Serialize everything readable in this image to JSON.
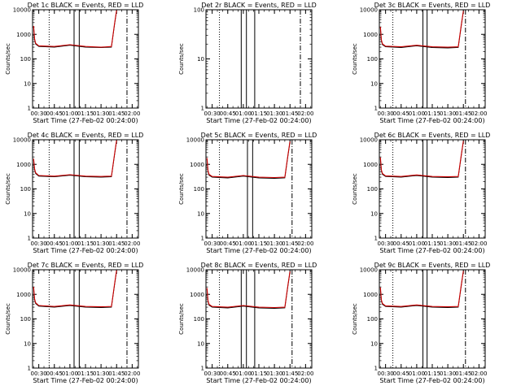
{
  "figure": {
    "colors": {
      "events": "#000000",
      "lld": "#cc0000"
    }
  },
  "chart_data": [
    {
      "type": "line",
      "title": "Det 1c BLACK = Events, RED = LLD",
      "xlabel": "Start Time (27-Feb-02 00:24:00)",
      "ylabel": "Counts/sec",
      "ylog": true,
      "ylim": [
        1,
        10000
      ],
      "xlim": [
        "00:24",
        "02:06"
      ],
      "xticks": [
        "00:30",
        "00:45",
        "01:00",
        "01:15",
        "01:30",
        "01:45",
        "02:00"
      ],
      "yticks": [
        "1",
        "10",
        "100",
        "1000",
        "10000"
      ],
      "vlines": [
        {
          "t": "00:40",
          "style": "dotted"
        },
        {
          "t": "01:04",
          "style": "solid"
        },
        {
          "t": "01:09",
          "style": "solid"
        },
        {
          "t": "01:55",
          "style": "dashdot"
        }
      ],
      "series": [
        {
          "color": "black",
          "t": [
            "00:25",
            "00:26",
            "00:27",
            "00:30",
            "00:45",
            "01:00",
            "01:15",
            "01:30",
            "01:40",
            "01:43",
            "01:45"
          ],
          "values": [
            2000,
            600,
            400,
            320,
            300,
            360,
            300,
            290,
            300,
            2500,
            9000
          ]
        },
        {
          "color": "red",
          "t": [
            "00:25",
            "00:26",
            "00:27",
            "00:30",
            "00:45",
            "01:00",
            "01:15",
            "01:30",
            "01:40",
            "01:43",
            "01:45"
          ],
          "values": [
            2200,
            650,
            430,
            340,
            320,
            380,
            320,
            300,
            320,
            2700,
            9500
          ]
        }
      ]
    },
    {
      "type": "line",
      "title": "Det 2r BLACK = Events, RED = LLD",
      "xlabel": "Start Time (27-Feb-02 00:24:00)",
      "ylabel": "Counts/sec",
      "ylog": true,
      "ylim": [
        1,
        100
      ],
      "xlim": [
        "00:24",
        "02:06"
      ],
      "xticks": [
        "00:30",
        "00:45",
        "01:00",
        "01:15",
        "01:30",
        "01:45",
        "02:00"
      ],
      "yticks": [
        "1",
        "10",
        "100"
      ],
      "vlines": [
        {
          "t": "00:37",
          "style": "dotted"
        },
        {
          "t": "00:58",
          "style": "solid"
        },
        {
          "t": "01:03",
          "style": "solid"
        },
        {
          "t": "01:11",
          "style": "solid"
        },
        {
          "t": "01:55",
          "style": "dashdot"
        }
      ],
      "series": []
    },
    {
      "type": "line",
      "title": "Det 3c BLACK = Events, RED = LLD",
      "xlabel": "Start Time (27-Feb-02 00:24:00)",
      "ylabel": "Counts/sec",
      "ylog": true,
      "ylim": [
        1,
        10000
      ],
      "xlim": [
        "00:24",
        "02:06"
      ],
      "xticks": [
        "00:30",
        "00:45",
        "01:00",
        "01:15",
        "01:30",
        "01:45",
        "02:00"
      ],
      "yticks": [
        "1",
        "10",
        "100",
        "1000",
        "10000"
      ],
      "vlines": [
        {
          "t": "00:37",
          "style": "dotted"
        },
        {
          "t": "01:06",
          "style": "solid"
        },
        {
          "t": "01:10",
          "style": "solid"
        },
        {
          "t": "01:47",
          "style": "dashdot"
        }
      ],
      "series": [
        {
          "color": "black",
          "t": [
            "00:25",
            "00:26",
            "00:27",
            "00:30",
            "00:45",
            "01:00",
            "01:15",
            "01:30",
            "01:40",
            "01:43",
            "01:45"
          ],
          "values": [
            1800,
            550,
            380,
            310,
            290,
            340,
            290,
            280,
            290,
            2300,
            8500
          ]
        },
        {
          "color": "red",
          "t": [
            "00:25",
            "00:26",
            "00:27",
            "00:30",
            "00:45",
            "01:00",
            "01:15",
            "01:30",
            "01:40",
            "01:43",
            "01:45"
          ],
          "values": [
            2000,
            600,
            410,
            330,
            310,
            360,
            310,
            300,
            310,
            2500,
            9000
          ]
        }
      ]
    },
    {
      "type": "line",
      "title": "Det 4c BLACK = Events, RED = LLD",
      "xlabel": "Start Time (27-Feb-02 00:24:00)",
      "ylabel": "Counts/sec",
      "ylog": true,
      "ylim": [
        1,
        10000
      ],
      "xlim": [
        "00:24",
        "02:06"
      ],
      "xticks": [
        "00:30",
        "00:45",
        "01:00",
        "01:15",
        "01:30",
        "01:45",
        "02:00"
      ],
      "yticks": [
        "1",
        "10",
        "100",
        "1000",
        "10000"
      ],
      "vlines": [
        {
          "t": "00:40",
          "style": "dotted"
        },
        {
          "t": "01:04",
          "style": "solid"
        },
        {
          "t": "01:09",
          "style": "solid"
        },
        {
          "t": "01:55",
          "style": "dashdot"
        }
      ],
      "series": [
        {
          "color": "black",
          "t": [
            "00:25",
            "00:26",
            "00:27",
            "00:30",
            "00:45",
            "01:00",
            "01:15",
            "01:30",
            "01:40",
            "01:43",
            "01:45"
          ],
          "values": [
            1500,
            600,
            420,
            330,
            310,
            360,
            310,
            300,
            310,
            2400,
            9000
          ]
        },
        {
          "color": "red",
          "t": [
            "00:25",
            "00:26",
            "00:27",
            "00:30",
            "00:45",
            "01:00",
            "01:15",
            "01:30",
            "01:40",
            "01:43",
            "01:45"
          ],
          "values": [
            1700,
            650,
            450,
            350,
            330,
            380,
            330,
            320,
            330,
            2600,
            9500
          ]
        }
      ]
    },
    {
      "type": "line",
      "title": "Det 5c BLACK = Events, RED = LLD",
      "xlabel": "Start Time (27-Feb-02 00:24:00)",
      "ylabel": "Counts/sec",
      "ylog": true,
      "ylim": [
        1,
        10000
      ],
      "xlim": [
        "00:24",
        "02:06"
      ],
      "xticks": [
        "00:30",
        "00:45",
        "01:00",
        "01:15",
        "01:30",
        "01:45",
        "02:00"
      ],
      "yticks": [
        "1",
        "10",
        "100",
        "1000",
        "10000"
      ],
      "vlines": [
        {
          "t": "00:37",
          "style": "dotted"
        },
        {
          "t": "01:04",
          "style": "solid"
        },
        {
          "t": "01:09",
          "style": "solid"
        },
        {
          "t": "01:47",
          "style": "dashdot"
        }
      ],
      "series": [
        {
          "color": "black",
          "t": [
            "00:25",
            "00:26",
            "00:27",
            "00:30",
            "00:45",
            "01:00",
            "01:15",
            "01:30",
            "01:40",
            "01:43",
            "01:45"
          ],
          "values": [
            1600,
            520,
            360,
            300,
            280,
            330,
            280,
            270,
            280,
            2200,
            8000
          ]
        },
        {
          "color": "red",
          "t": [
            "00:25",
            "00:26",
            "00:27",
            "00:30",
            "00:45",
            "01:00",
            "01:15",
            "01:30",
            "01:40",
            "01:43",
            "01:45"
          ],
          "values": [
            1800,
            560,
            390,
            320,
            300,
            350,
            300,
            290,
            300,
            2400,
            8500
          ]
        }
      ]
    },
    {
      "type": "line",
      "title": "Det 6c BLACK = Events, RED = LLD",
      "xlabel": "Start Time (27-Feb-02 00:24:00)",
      "ylabel": "Counts/sec",
      "ylog": true,
      "ylim": [
        1,
        10000
      ],
      "xlim": [
        "00:24",
        "02:06"
      ],
      "xticks": [
        "00:30",
        "00:45",
        "01:00",
        "01:15",
        "01:30",
        "01:45",
        "02:00"
      ],
      "yticks": [
        "1",
        "10",
        "100",
        "1000",
        "10000"
      ],
      "vlines": [
        {
          "t": "00:37",
          "style": "dotted"
        },
        {
          "t": "01:06",
          "style": "solid"
        },
        {
          "t": "01:10",
          "style": "solid"
        },
        {
          "t": "01:47",
          "style": "dashdot"
        }
      ],
      "series": [
        {
          "color": "black",
          "t": [
            "00:25",
            "00:26",
            "00:27",
            "00:30",
            "00:45",
            "01:00",
            "01:15",
            "01:30",
            "01:40",
            "01:43",
            "01:45"
          ],
          "values": [
            1700,
            560,
            390,
            320,
            300,
            350,
            300,
            290,
            300,
            2300,
            8500
          ]
        },
        {
          "color": "red",
          "t": [
            "00:25",
            "00:26",
            "00:27",
            "00:30",
            "00:45",
            "01:00",
            "01:15",
            "01:30",
            "01:40",
            "01:43",
            "01:45"
          ],
          "values": [
            1900,
            600,
            420,
            340,
            320,
            370,
            320,
            310,
            320,
            2500,
            9000
          ]
        }
      ]
    },
    {
      "type": "line",
      "title": "Det 7c BLACK = Events, RED = LLD",
      "xlabel": "Start Time (27-Feb-02 00:24:00)",
      "ylabel": "Counts/sec",
      "ylog": true,
      "ylim": [
        1,
        10000
      ],
      "xlim": [
        "00:24",
        "02:06"
      ],
      "xticks": [
        "00:30",
        "00:45",
        "01:00",
        "01:15",
        "01:30",
        "01:45",
        "02:00"
      ],
      "yticks": [
        "1",
        "10",
        "100",
        "1000",
        "10000"
      ],
      "vlines": [
        {
          "t": "00:40",
          "style": "dotted"
        },
        {
          "t": "01:04",
          "style": "solid"
        },
        {
          "t": "01:09",
          "style": "solid"
        },
        {
          "t": "01:55",
          "style": "dashdot"
        }
      ],
      "series": [
        {
          "color": "black",
          "t": [
            "00:25",
            "00:26",
            "00:27",
            "00:30",
            "00:45",
            "01:00",
            "01:15",
            "01:30",
            "01:40",
            "01:43",
            "01:45"
          ],
          "values": [
            1800,
            600,
            420,
            330,
            300,
            350,
            300,
            290,
            300,
            2400,
            9000
          ]
        },
        {
          "color": "red",
          "t": [
            "00:25",
            "00:26",
            "00:27",
            "00:30",
            "00:45",
            "01:00",
            "01:15",
            "01:30",
            "01:40",
            "01:43",
            "01:45"
          ],
          "values": [
            2000,
            650,
            450,
            350,
            320,
            370,
            320,
            310,
            320,
            2600,
            9500
          ]
        }
      ]
    },
    {
      "type": "line",
      "title": "Det 8c BLACK = Events, RED = LLD",
      "xlabel": "Start Time (27-Feb-02 00:24:00)",
      "ylabel": "Counts/sec",
      "ylog": true,
      "ylim": [
        1,
        10000
      ],
      "xlim": [
        "00:24",
        "02:06"
      ],
      "xticks": [
        "00:30",
        "00:45",
        "01:00",
        "01:15",
        "01:30",
        "01:45",
        "02:00"
      ],
      "yticks": [
        "1",
        "10",
        "100",
        "1000",
        "10000"
      ],
      "vlines": [
        {
          "t": "00:37",
          "style": "dotted"
        },
        {
          "t": "00:58",
          "style": "solid"
        },
        {
          "t": "01:03",
          "style": "solid"
        },
        {
          "t": "01:11",
          "style": "solid"
        },
        {
          "t": "01:47",
          "style": "dashdot"
        }
      ],
      "series": [
        {
          "color": "black",
          "t": [
            "00:25",
            "00:26",
            "00:27",
            "00:30",
            "00:45",
            "01:00",
            "01:15",
            "01:30",
            "01:40",
            "01:43",
            "01:45"
          ],
          "values": [
            1600,
            520,
            360,
            300,
            280,
            330,
            280,
            270,
            280,
            2200,
            8000
          ]
        },
        {
          "color": "red",
          "t": [
            "00:25",
            "00:26",
            "00:27",
            "00:30",
            "00:45",
            "01:00",
            "01:15",
            "01:30",
            "01:40",
            "01:43",
            "01:45"
          ],
          "values": [
            1800,
            560,
            390,
            320,
            300,
            350,
            300,
            290,
            300,
            2400,
            8500
          ]
        }
      ]
    },
    {
      "type": "line",
      "title": "Det 9c BLACK = Events, RED = LLD",
      "xlabel": "Start Time (27-Feb-02 00:24:00)",
      "ylabel": "Counts/sec",
      "ylog": true,
      "ylim": [
        1,
        10000
      ],
      "xlim": [
        "00:24",
        "02:06"
      ],
      "xticks": [
        "00:30",
        "00:45",
        "01:00",
        "01:15",
        "01:30",
        "01:45",
        "02:00"
      ],
      "yticks": [
        "1",
        "10",
        "100",
        "1000",
        "10000"
      ],
      "vlines": [
        {
          "t": "00:37",
          "style": "dotted"
        },
        {
          "t": "01:06",
          "style": "solid"
        },
        {
          "t": "01:10",
          "style": "solid"
        },
        {
          "t": "01:47",
          "style": "dashdot"
        }
      ],
      "series": [
        {
          "color": "black",
          "t": [
            "00:25",
            "00:26",
            "00:27",
            "00:30",
            "00:45",
            "01:00",
            "01:15",
            "01:30",
            "01:40",
            "01:43",
            "01:45"
          ],
          "values": [
            1700,
            560,
            390,
            320,
            300,
            350,
            300,
            290,
            300,
            2300,
            8500
          ]
        },
        {
          "color": "red",
          "t": [
            "00:25",
            "00:26",
            "00:27",
            "00:30",
            "00:45",
            "01:00",
            "01:15",
            "01:30",
            "01:40",
            "01:43",
            "01:45"
          ],
          "values": [
            1900,
            600,
            420,
            340,
            320,
            370,
            320,
            310,
            320,
            2500,
            9000
          ]
        }
      ]
    }
  ]
}
